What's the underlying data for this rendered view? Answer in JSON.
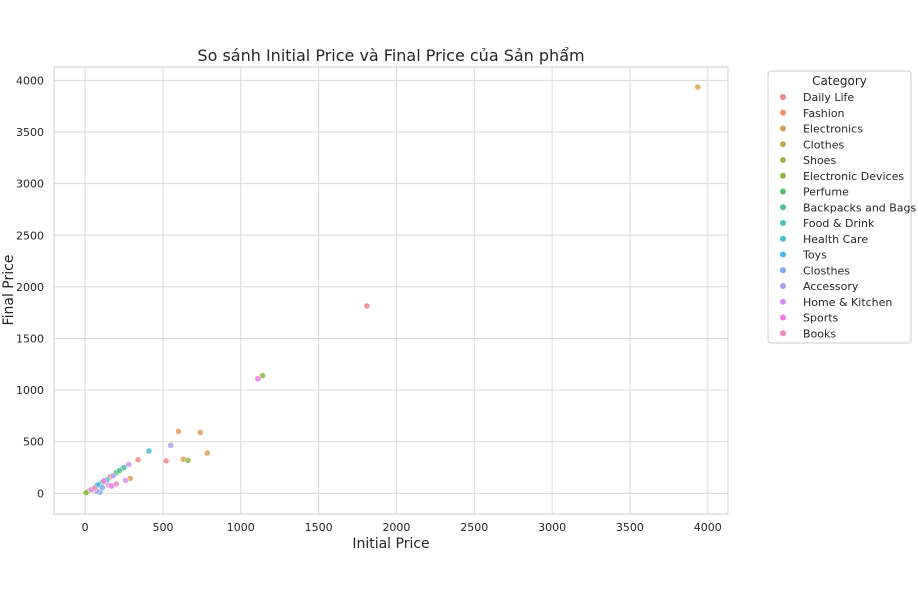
{
  "chart_data": {
    "type": "scatter",
    "title": "So sánh Initial Price và Final Price của Sản phẩm",
    "xlabel": "Initial Price",
    "ylabel": "Final Price",
    "xlim": [
      -200,
      4130
    ],
    "ylim": [
      -200,
      4130
    ],
    "xticks": [
      0,
      500,
      1000,
      1500,
      2000,
      2500,
      3000,
      3500,
      4000
    ],
    "yticks": [
      0,
      500,
      1000,
      1500,
      2000,
      2500,
      3000,
      3500,
      4000
    ],
    "grid": true,
    "legend": {
      "title": "Category",
      "placement": "right"
    },
    "series": [
      {
        "name": "Daily Life",
        "color": "#f0868a",
        "points": [
          [
            1810,
            1815
          ],
          [
            340,
            325
          ],
          [
            520,
            315
          ],
          [
            20,
            20
          ]
        ]
      },
      {
        "name": "Fashion",
        "color": "#ee9460",
        "points": [
          [
            600,
            600
          ],
          [
            160,
            160
          ],
          [
            60,
            60
          ]
        ]
      },
      {
        "name": "Electronics",
        "color": "#d8a15a",
        "points": [
          [
            3935,
            3935
          ],
          [
            740,
            590
          ],
          [
            785,
            390
          ],
          [
            290,
            145
          ],
          [
            630,
            330
          ]
        ]
      },
      {
        "name": "Clothes",
        "color": "#c4a64c",
        "points": [
          [
            240,
            240
          ],
          [
            30,
            30
          ]
        ]
      },
      {
        "name": "Shoes",
        "color": "#afb042",
        "points": [
          [
            15,
            15
          ],
          [
            50,
            40
          ]
        ]
      },
      {
        "name": "Electronic Devices",
        "color": "#8fbb45",
        "points": [
          [
            1140,
            1140
          ],
          [
            660,
            320
          ],
          [
            100,
            100
          ],
          [
            5,
            5
          ]
        ]
      },
      {
        "name": "Perfume",
        "color": "#52c16d",
        "points": [
          [
            200,
            200
          ],
          [
            70,
            70
          ]
        ]
      },
      {
        "name": "Backpacks and Bags",
        "color": "#4cbfa0",
        "points": [
          [
            220,
            220
          ],
          [
            120,
            110
          ]
        ]
      },
      {
        "name": "Food & Drink",
        "color": "#4ec0bb",
        "points": [
          [
            250,
            250
          ],
          [
            90,
            90
          ]
        ]
      },
      {
        "name": "Health Care",
        "color": "#4cbcd1",
        "points": [
          [
            410,
            410
          ],
          [
            140,
            130
          ]
        ]
      },
      {
        "name": "Toys",
        "color": "#4db5e3",
        "points": [
          [
            80,
            80
          ]
        ]
      },
      {
        "name": "Closthes",
        "color": "#7ea9ed",
        "points": [
          [
            95,
            10
          ],
          [
            110,
            55
          ]
        ]
      },
      {
        "name": "Accessory",
        "color": "#ad9ef0",
        "points": [
          [
            550,
            465
          ],
          [
            180,
            170
          ],
          [
            75,
            20
          ]
        ]
      },
      {
        "name": "Home & Kitchen",
        "color": "#d98ef0",
        "points": [
          [
            280,
            280
          ],
          [
            260,
            125
          ],
          [
            150,
            80
          ],
          [
            40,
            35
          ]
        ]
      },
      {
        "name": "Sports",
        "color": "#f07ae0",
        "points": [
          [
            1110,
            1110
          ],
          [
            120,
            120
          ],
          [
            170,
            70
          ]
        ]
      },
      {
        "name": "Books",
        "color": "#f088c2",
        "points": [
          [
            200,
            90
          ],
          [
            60,
            50
          ]
        ]
      }
    ]
  }
}
